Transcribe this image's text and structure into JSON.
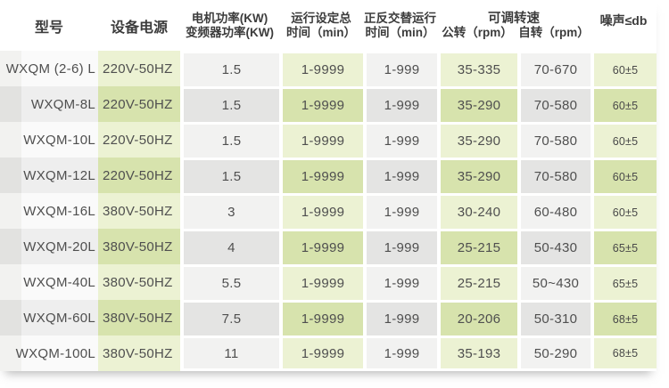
{
  "table": {
    "headers": {
      "model": "型号",
      "power_supply": "设备电源",
      "motor_power_line1": "电机功率(KW)",
      "motor_power_line2": "变频器功率(KW)",
      "run_time_line1": "运行设定总",
      "run_time_line2": "时间（min）",
      "alt_time_line1": "正反交替运行",
      "alt_time_line2": "时间（min）",
      "speed_group": "可调转速",
      "speed_revolution": "公转（rpm）",
      "speed_rotation": "自转（rpm）",
      "noise": "噪声≤db"
    },
    "rows": [
      {
        "model": "WXQM (2-6) L",
        "power_supply": "220V-50HZ",
        "motor_power": "1.5",
        "run_time": "1-9999",
        "alt_time": "1-999",
        "rev_speed": "35-335",
        "rot_speed": "70-670",
        "noise": "60±5"
      },
      {
        "model": "WXQM-8L",
        "power_supply": "220V-50HZ",
        "motor_power": "1.5",
        "run_time": "1-9999",
        "alt_time": "1-999",
        "rev_speed": "35-290",
        "rot_speed": "70-580",
        "noise": "60±5"
      },
      {
        "model": "WXQM-10L",
        "power_supply": "220V-50HZ",
        "motor_power": "1.5",
        "run_time": "1-9999",
        "alt_time": "1-999",
        "rev_speed": "35-290",
        "rot_speed": "70-580",
        "noise": "60±5"
      },
      {
        "model": "WXQM-12L",
        "power_supply": "220V-50HZ",
        "motor_power": "1.5",
        "run_time": "1-9999",
        "alt_time": "1-999",
        "rev_speed": "35-290",
        "rot_speed": "70-580",
        "noise": "60±5"
      },
      {
        "model": "WXQM-16L",
        "power_supply": "380V-50HZ",
        "motor_power": "3",
        "run_time": "1-9999",
        "alt_time": "1-999",
        "rev_speed": "30-240",
        "rot_speed": "60-480",
        "noise": "60±5"
      },
      {
        "model": "WXQM-20L",
        "power_supply": "380V-50HZ",
        "motor_power": "4",
        "run_time": "1-9999",
        "alt_time": "1-999",
        "rev_speed": "25-215",
        "rot_speed": "50-430",
        "noise": "65±5"
      },
      {
        "model": "WXQM-40L",
        "power_supply": "380V-50HZ",
        "motor_power": "5.5",
        "run_time": "1-9999",
        "alt_time": "1-999",
        "rev_speed": "25-215",
        "rot_speed": "50~430",
        "noise": "65±5"
      },
      {
        "model": "WXQM-60L",
        "power_supply": "380V-50HZ",
        "motor_power": "7.5",
        "run_time": "1-9999",
        "alt_time": "1-999",
        "rev_speed": "20-206",
        "rot_speed": "50-310",
        "noise": "68±5"
      },
      {
        "model": "WXQM-100L",
        "power_supply": "380V-50HZ",
        "motor_power": "11",
        "run_time": "1-9999",
        "alt_time": "1-999",
        "rev_speed": "35-193",
        "rot_speed": "50-290",
        "noise": "68±5"
      }
    ],
    "colors": {
      "green_odd": "#ecf2d3",
      "green_even": "#d7e3ad",
      "gray_odd": "#f2f2f1",
      "gray_even": "#e4e4e3",
      "model_odd": "#fafafa",
      "model_even": "#eeeeee",
      "accent_odd": "#f2f2f0",
      "accent_even": "#e2e2e0",
      "header_text": "#3c3c3c",
      "body_text": "#4f4f4f"
    }
  }
}
